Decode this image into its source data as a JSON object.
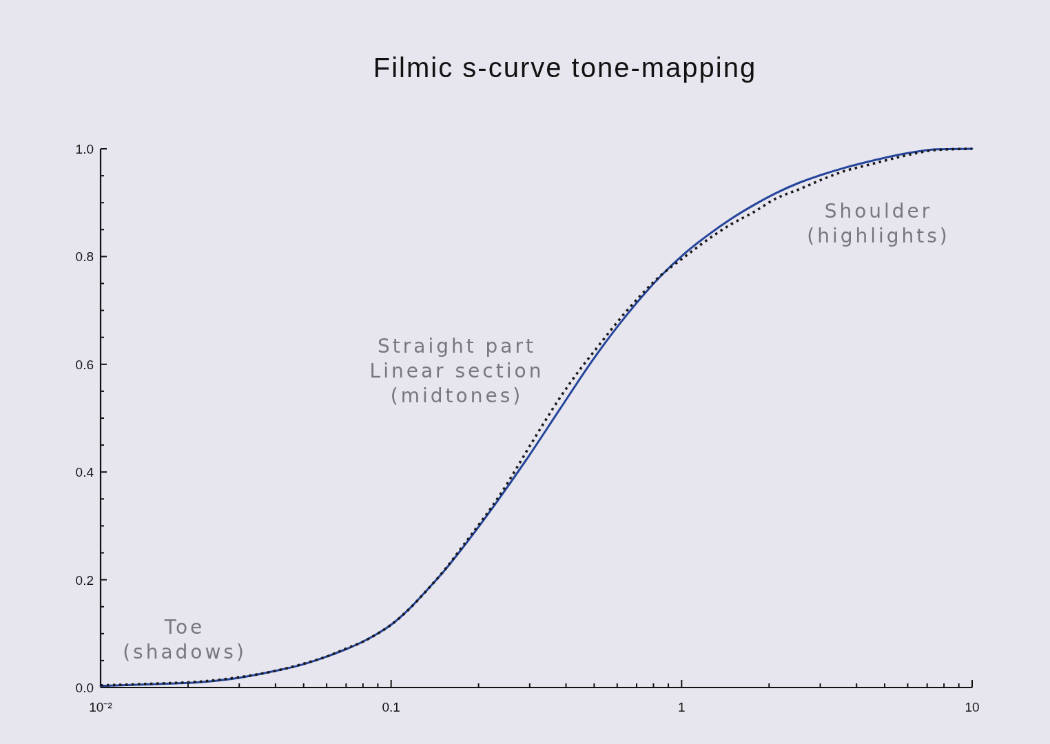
{
  "chart_data": {
    "type": "line",
    "title": "Filmic s-curve tone-mapping",
    "log": "x",
    "xlim": [
      0.01,
      10
    ],
    "ylim": [
      0,
      1
    ],
    "xticks": [
      {
        "value": 0.01,
        "label": "10⁻²"
      },
      {
        "value": 0.02,
        "label": null
      },
      {
        "value": 0.03,
        "label": null
      },
      {
        "value": 0.04,
        "label": null
      },
      {
        "value": 0.05,
        "label": null
      },
      {
        "value": 0.06,
        "label": null
      },
      {
        "value": 0.07,
        "label": null
      },
      {
        "value": 0.08,
        "label": null
      },
      {
        "value": 0.09,
        "label": null
      },
      0.1,
      {
        "value": 0.2,
        "label": null
      },
      {
        "value": 0.3,
        "label": null
      },
      {
        "value": 0.4,
        "label": null
      },
      {
        "value": 0.5,
        "label": null
      },
      {
        "value": 0.6,
        "label": null
      },
      {
        "value": 0.7,
        "label": null
      },
      {
        "value": 0.8,
        "label": null
      },
      {
        "value": 0.9,
        "label": null
      },
      1,
      {
        "value": 2,
        "label": null
      },
      {
        "value": 3,
        "label": null
      },
      {
        "value": 4,
        "label": null
      },
      {
        "value": 5,
        "label": null
      },
      {
        "value": 6,
        "label": null
      },
      {
        "value": 7,
        "label": null
      },
      {
        "value": 8,
        "label": null
      },
      {
        "value": 9,
        "label": null
      },
      10
    ],
    "yticks": [
      {
        "value": 0,
        "label": "0.0"
      },
      {
        "value": 0.05,
        "label": null
      },
      {
        "value": 0.1,
        "label": null
      },
      {
        "value": 0.15,
        "label": null
      },
      0.2,
      {
        "value": 0.25,
        "label": null
      },
      {
        "value": 0.3,
        "label": null
      },
      {
        "value": 0.35,
        "label": null
      },
      0.4,
      {
        "value": 0.45,
        "label": null
      },
      {
        "value": 0.5,
        "label": null
      },
      {
        "value": 0.55,
        "label": null
      },
      0.6,
      {
        "value": 0.65,
        "label": null
      },
      {
        "value": 0.7,
        "label": null
      },
      {
        "value": 0.75,
        "label": null
      },
      0.8,
      {
        "value": 0.85,
        "label": null
      },
      {
        "value": 0.9,
        "label": null
      },
      {
        "value": 0.95,
        "label": null
      },
      {
        "value": 1,
        "label": "1.0"
      }
    ],
    "series": [
      {
        "color": "#24449a",
        "line_style": "solid",
        "x": [
          0.01,
          0.015,
          0.0232,
          0.0299,
          0.04,
          0.0498,
          0.0597,
          0.0691,
          0.0799,
          0.0892,
          0.1003,
          0.115,
          0.133,
          0.1526,
          0.175,
          0.23,
          0.2965,
          0.3824,
          0.493,
          0.648,
          0.852,
          1.0216,
          1.226,
          1.47,
          1.764,
          2.117,
          2.539,
          3.045,
          3.653,
          4.383,
          5.26,
          6.31,
          7.57,
          10
        ],
        "values": [
          0.003,
          0.006,
          0.011,
          0.018,
          0.031,
          0.043,
          0.057,
          0.07,
          0.085,
          0.099,
          0.117,
          0.145,
          0.181,
          0.217,
          0.257,
          0.343,
          0.428,
          0.518,
          0.607,
          0.692,
          0.765,
          0.805,
          0.839,
          0.869,
          0.895,
          0.918,
          0.937,
          0.952,
          0.965,
          0.976,
          0.986,
          0.994,
          0.999,
          1.0
        ]
      },
      {
        "color": "#1a1a1a",
        "line_style": "dotted",
        "x": [
          0.01,
          0.015,
          0.0232,
          0.0299,
          0.04,
          0.0498,
          0.0597,
          0.0691,
          0.0799,
          0.0892,
          0.1003,
          0.115,
          0.133,
          0.1526,
          0.175,
          0.2427,
          0.3046,
          0.3824,
          0.442,
          0.51,
          0.642,
          0.852,
          1.0216,
          1.226,
          1.47,
          1.764,
          2.117,
          2.539,
          3.045,
          3.653,
          4.383,
          5.26,
          6.31,
          7.57,
          10
        ],
        "values": [
          0.004,
          0.007,
          0.012,
          0.019,
          0.031,
          0.044,
          0.057,
          0.071,
          0.085,
          0.099,
          0.117,
          0.145,
          0.181,
          0.218,
          0.26,
          0.366,
          0.454,
          0.539,
          0.587,
          0.63,
          0.697,
          0.766,
          0.799,
          0.831,
          0.859,
          0.882,
          0.908,
          0.925,
          0.943,
          0.959,
          0.97,
          0.981,
          0.991,
          0.998,
          1.0
        ]
      }
    ],
    "annotations": [
      "Toe\n(shadows)",
      "Straight part\nLinear section\n(midtones)",
      "Shoulder\n(highlights)"
    ]
  }
}
